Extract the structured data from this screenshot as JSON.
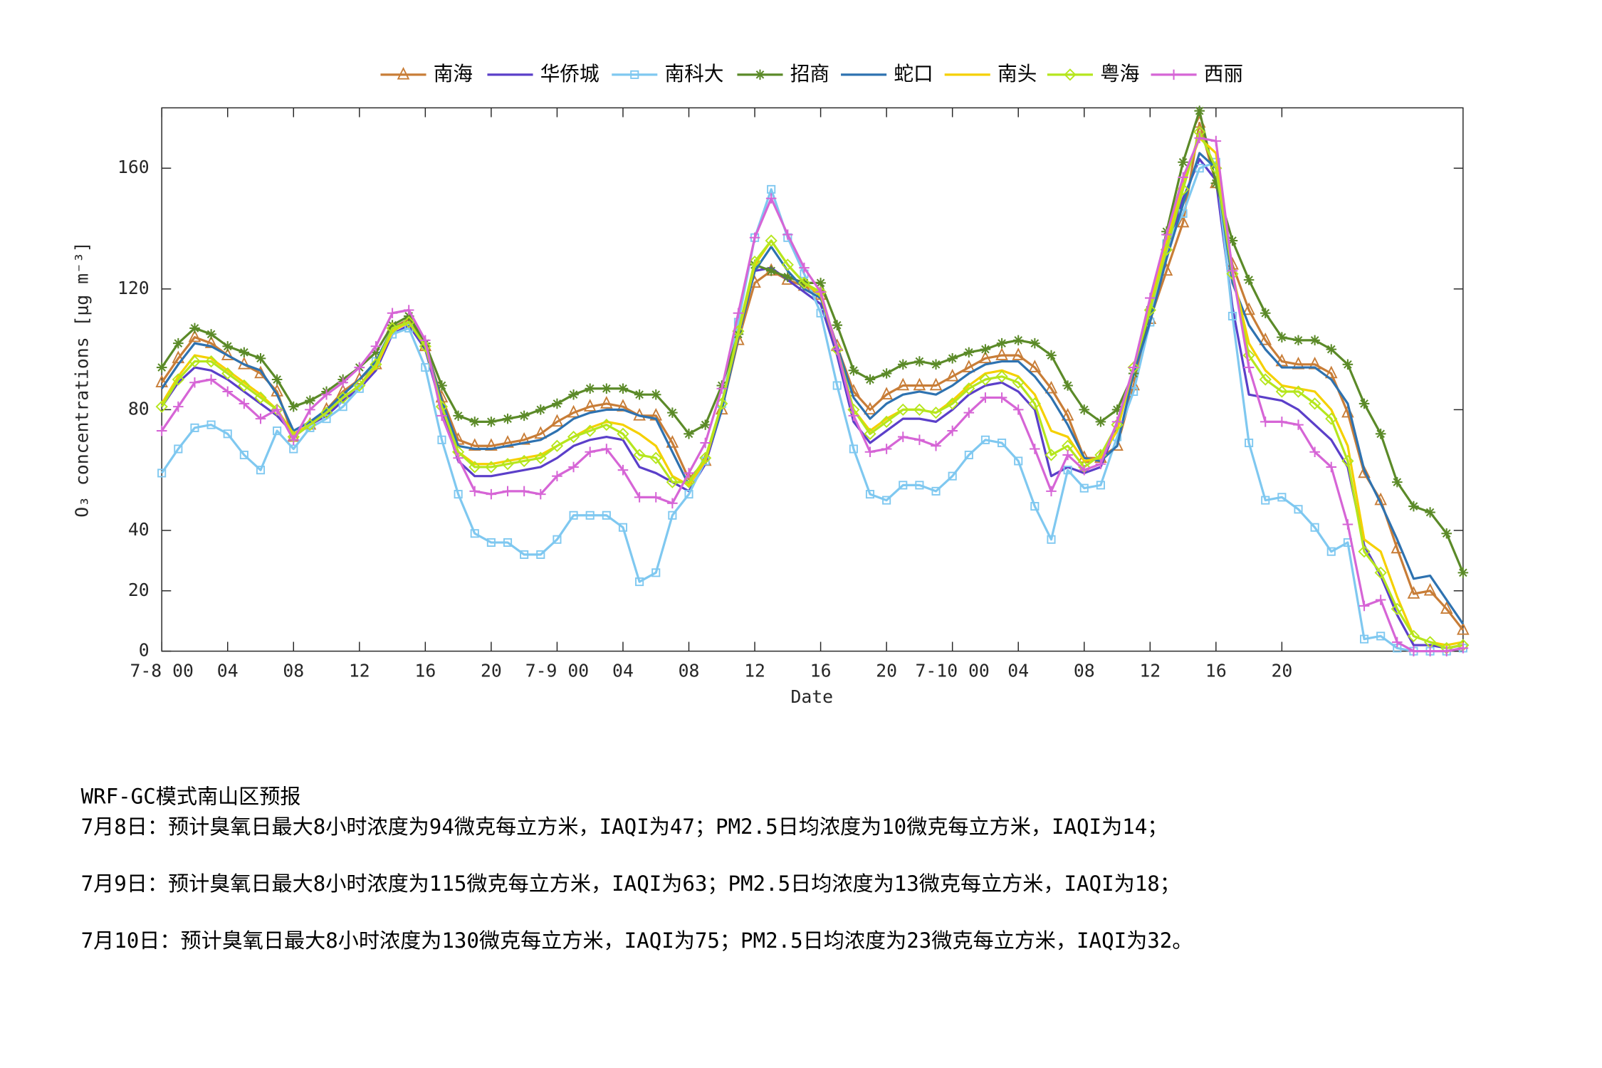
{
  "chart_data": {
    "type": "line",
    "x_label": "Date",
    "y_label": "O₃ concentrations [μg m⁻³]",
    "x": [
      0,
      1,
      2,
      3,
      4,
      5,
      6,
      7,
      8,
      9,
      10,
      11,
      12,
      13,
      14,
      15,
      16,
      17,
      18,
      19,
      20,
      21,
      22,
      23,
      24,
      25,
      26,
      27,
      28,
      29,
      30,
      31,
      32,
      33,
      34,
      35,
      36,
      37,
      38,
      39,
      40,
      41,
      42,
      43,
      44,
      45,
      46,
      47,
      48,
      49,
      50,
      51,
      52,
      53,
      54,
      55,
      56,
      57,
      58,
      59,
      60,
      61,
      62,
      63,
      64,
      65,
      66,
      67,
      68,
      69,
      70,
      71,
      72,
      73,
      74,
      75,
      76,
      77,
      78,
      79
    ],
    "xlim": [
      0,
      79
    ],
    "xticks": [
      {
        "value": 0,
        "label": "7-8 00"
      },
      {
        "value": 4,
        "label": "04"
      },
      {
        "value": 8,
        "label": "08"
      },
      12,
      16,
      20,
      {
        "value": 24,
        "label": "7-9 00"
      },
      {
        "value": 28,
        "label": "04"
      },
      {
        "value": 32,
        "label": "08"
      },
      {
        "value": 36,
        "label": "12"
      },
      {
        "value": 40,
        "label": "16"
      },
      {
        "value": 44,
        "label": "20"
      },
      {
        "value": 48,
        "label": "7-10 00"
      },
      {
        "value": 52,
        "label": "04"
      },
      {
        "value": 56,
        "label": "08"
      },
      {
        "value": 60,
        "label": "12"
      },
      {
        "value": 64,
        "label": "16"
      },
      {
        "value": 68,
        "label": "20"
      }
    ],
    "ylim": [
      0,
      180
    ],
    "yticks": [
      0,
      20,
      40,
      80,
      120,
      160
    ],
    "grid": false,
    "legend": "top",
    "series": [
      {
        "name": "南海",
        "color": "#c87d37",
        "marker": "triangle",
        "values": [
          89,
          97,
          104,
          102,
          98,
          95,
          92,
          86,
          71,
          75,
          80,
          86,
          90,
          95,
          107,
          110,
          101,
          84,
          70,
          68,
          68,
          69,
          70,
          72,
          76,
          79,
          81,
          82,
          81,
          78,
          78,
          69,
          57,
          63,
          80,
          103,
          122,
          126,
          123,
          121,
          118,
          101,
          86,
          80,
          85,
          88,
          88,
          88,
          91,
          94,
          97,
          98,
          98,
          94,
          87,
          78,
          64,
          64,
          68,
          88,
          110,
          126,
          142,
          175,
          155,
          128,
          113,
          103,
          96,
          95,
          95,
          92,
          79,
          59,
          50,
          34,
          19,
          20,
          14,
          7
        ]
      },
      {
        "name": "华侨城",
        "color": "#5b3fc9",
        "marker": "none",
        "values": [
          81,
          89,
          94,
          93,
          90,
          86,
          82,
          78,
          72,
          75,
          78,
          83,
          87,
          93,
          105,
          108,
          100,
          80,
          63,
          58,
          58,
          59,
          60,
          61,
          64,
          68,
          70,
          71,
          70,
          61,
          59,
          56,
          53,
          62,
          80,
          104,
          126,
          127,
          123,
          119,
          115,
          98,
          76,
          69,
          73,
          77,
          77,
          76,
          80,
          85,
          88,
          89,
          86,
          80,
          58,
          61,
          59,
          61,
          75,
          92,
          112,
          133,
          150,
          163,
          156,
          114,
          85,
          84,
          83,
          80,
          75,
          70,
          61,
          35,
          25,
          12,
          2,
          2,
          1,
          2
        ]
      },
      {
        "name": "南科大",
        "color": "#7fc8f0",
        "marker": "square",
        "values": [
          59,
          67,
          74,
          75,
          72,
          65,
          60,
          73,
          67,
          74,
          77,
          81,
          87,
          96,
          105,
          107,
          94,
          70,
          52,
          39,
          36,
          36,
          32,
          32,
          37,
          45,
          45,
          45,
          41,
          23,
          26,
          45,
          52,
          63,
          82,
          109,
          137,
          153,
          137,
          125,
          112,
          88,
          67,
          52,
          50,
          55,
          55,
          53,
          58,
          65,
          70,
          69,
          63,
          48,
          37,
          60,
          54,
          55,
          71,
          86,
          109,
          135,
          145,
          160,
          162,
          111,
          69,
          50,
          51,
          47,
          41,
          33,
          36,
          4,
          5,
          1,
          0,
          0,
          0,
          1
        ]
      },
      {
        "name": "招商",
        "color": "#5b8a28",
        "marker": "star",
        "values": [
          94,
          102,
          107,
          105,
          101,
          99,
          97,
          90,
          81,
          83,
          86,
          90,
          94,
          99,
          108,
          111,
          102,
          88,
          78,
          76,
          76,
          77,
          78,
          80,
          82,
          85,
          87,
          87,
          87,
          85,
          85,
          79,
          72,
          75,
          88,
          105,
          128,
          126,
          124,
          122,
          122,
          108,
          93,
          90,
          92,
          95,
          96,
          95,
          97,
          99,
          100,
          102,
          103,
          102,
          98,
          88,
          80,
          76,
          80,
          92,
          113,
          139,
          162,
          179,
          155,
          136,
          123,
          112,
          104,
          103,
          103,
          100,
          95,
          82,
          72,
          56,
          48,
          46,
          39,
          26
        ]
      },
      {
        "name": "蛇口",
        "color": "#2e72b0",
        "marker": "none",
        "values": [
          87,
          95,
          102,
          101,
          98,
          95,
          93,
          85,
          73,
          76,
          80,
          85,
          90,
          96,
          107,
          109,
          101,
          83,
          68,
          67,
          67,
          68,
          69,
          70,
          73,
          77,
          79,
          80,
          80,
          78,
          77,
          66,
          55,
          63,
          80,
          104,
          126,
          134,
          126,
          120,
          117,
          101,
          84,
          77,
          82,
          85,
          86,
          85,
          88,
          92,
          95,
          96,
          96,
          91,
          84,
          75,
          64,
          63,
          68,
          92,
          109,
          130,
          148,
          165,
          160,
          122,
          108,
          100,
          94,
          94,
          94,
          90,
          82,
          60,
          49,
          37,
          24,
          25,
          17,
          9
        ]
      },
      {
        "name": "南头",
        "color": "#f5d000",
        "marker": "none",
        "values": [
          82,
          91,
          98,
          97,
          93,
          89,
          85,
          80,
          72,
          75,
          79,
          84,
          88,
          94,
          106,
          109,
          101,
          81,
          66,
          62,
          62,
          63,
          64,
          65,
          68,
          71,
          74,
          76,
          75,
          72,
          68,
          58,
          55,
          63,
          82,
          105,
          128,
          136,
          128,
          122,
          118,
          100,
          80,
          73,
          77,
          80,
          80,
          79,
          83,
          88,
          92,
          93,
          91,
          85,
          73,
          71,
          63,
          64,
          73,
          94,
          115,
          135,
          155,
          170,
          165,
          125,
          102,
          93,
          88,
          87,
          86,
          80,
          68,
          37,
          33,
          18,
          5,
          3,
          2,
          3
        ]
      },
      {
        "name": "粤海",
        "color": "#b5e61d",
        "marker": "diamond",
        "values": [
          81,
          90,
          96,
          96,
          92,
          88,
          84,
          80,
          71,
          75,
          79,
          84,
          88,
          95,
          107,
          109,
          101,
          81,
          66,
          61,
          61,
          62,
          63,
          64,
          68,
          71,
          73,
          75,
          72,
          65,
          64,
          56,
          56,
          64,
          82,
          106,
          129,
          136,
          128,
          122,
          119,
          100,
          80,
          72,
          76,
          80,
          80,
          79,
          82,
          87,
          90,
          91,
          89,
          82,
          65,
          68,
          61,
          65,
          75,
          94,
          113,
          133,
          153,
          172,
          160,
          125,
          98,
          90,
          86,
          86,
          82,
          77,
          63,
          33,
          26,
          14,
          5,
          3,
          1,
          2
        ]
      },
      {
        "name": "西丽",
        "color": "#d665d6",
        "marker": "plus",
        "values": [
          73,
          81,
          89,
          90,
          86,
          82,
          77,
          80,
          70,
          80,
          85,
          89,
          94,
          101,
          112,
          113,
          103,
          78,
          64,
          53,
          52,
          53,
          53,
          52,
          58,
          61,
          66,
          67,
          60,
          51,
          51,
          49,
          59,
          69,
          87,
          112,
          137,
          150,
          138,
          127,
          119,
          100,
          78,
          66,
          67,
          71,
          70,
          68,
          73,
          79,
          84,
          84,
          80,
          67,
          53,
          65,
          60,
          62,
          76,
          94,
          117,
          138,
          157,
          170,
          169,
          126,
          94,
          76,
          76,
          75,
          66,
          61,
          42,
          15,
          17,
          3,
          0,
          0,
          0,
          1
        ]
      }
    ]
  },
  "notes": {
    "title": "WRF-GC模式南山区预报",
    "lines": [
      "7月8日：预计臭氧日最大8小时浓度为94微克每立方米，IAQI为47；PM2.5日均浓度为10微克每立方米，IAQI为14；",
      "7月9日：预计臭氧日最大8小时浓度为115微克每立方米，IAQI为63；PM2.5日均浓度为13微克每立方米，IAQI为18；",
      "7月10日：预计臭氧日最大8小时浓度为130微克每立方米，IAQI为75；PM2.5日均浓度为23微克每立方米，IAQI为32。"
    ]
  }
}
